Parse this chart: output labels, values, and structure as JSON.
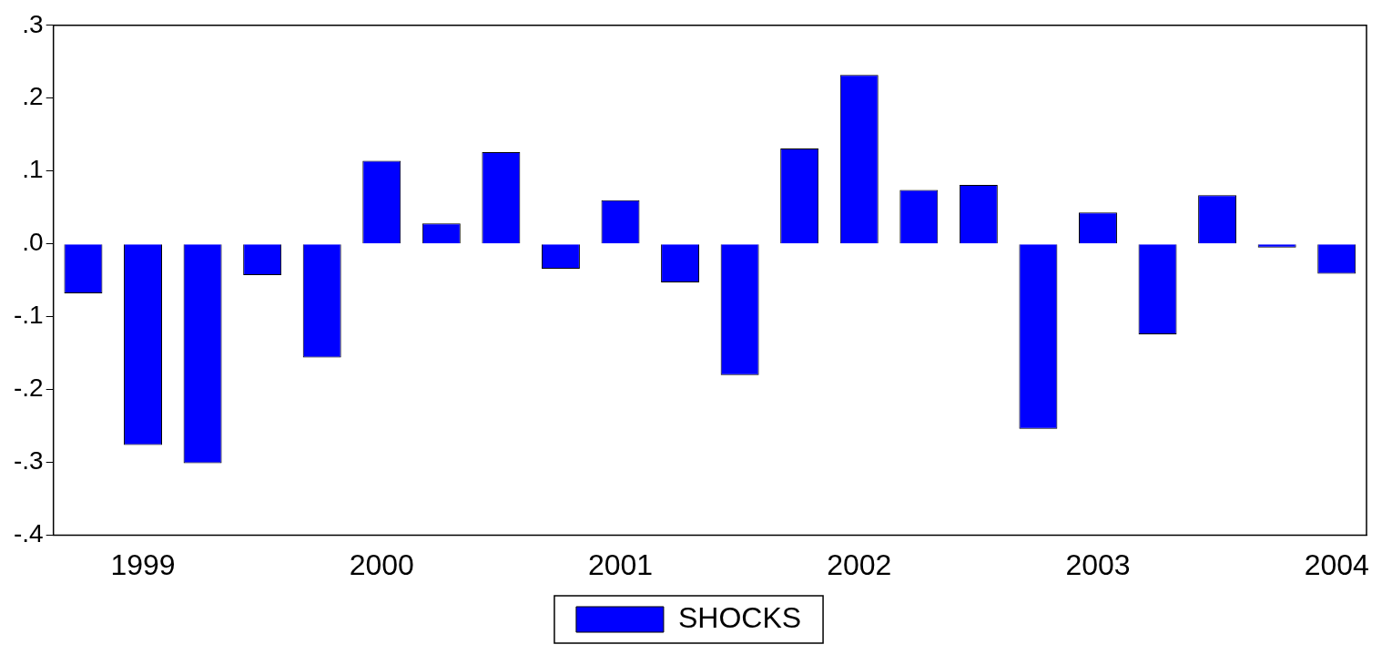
{
  "chart_data": {
    "type": "bar",
    "categories": [
      null,
      "1999",
      null,
      null,
      null,
      "2000",
      null,
      null,
      null,
      "2001",
      null,
      null,
      null,
      "2002",
      null,
      null,
      null,
      "2003",
      null,
      null,
      null,
      "2004"
    ],
    "series": [
      {
        "name": "SHOCKS",
        "color": "#0000ff",
        "values": [
          -0.068,
          -0.276,
          -0.301,
          -0.043,
          -0.156,
          0.114,
          0.028,
          0.126,
          -0.034,
          0.06,
          -0.053,
          -0.18,
          0.131,
          0.232,
          0.074,
          0.081,
          -0.254,
          0.043,
          -0.124,
          0.067,
          -0.005,
          -0.041
        ]
      }
    ],
    "ylim": [
      -0.4,
      0.3
    ],
    "yticks": [
      {
        "value": -0.4,
        "label": "-.4"
      },
      {
        "value": -0.3,
        "label": "-.3"
      },
      {
        "value": -0.2,
        "label": "-.2"
      },
      {
        "value": -0.1,
        "label": "-.1"
      },
      {
        "value": 0,
        "label": ".0"
      },
      {
        "value": 0.1,
        "label": ".1"
      },
      {
        "value": 0.2,
        "label": ".2"
      },
      {
        "value": 0.3,
        "label": ".3"
      }
    ],
    "grid": false,
    "legend": "bottom"
  }
}
